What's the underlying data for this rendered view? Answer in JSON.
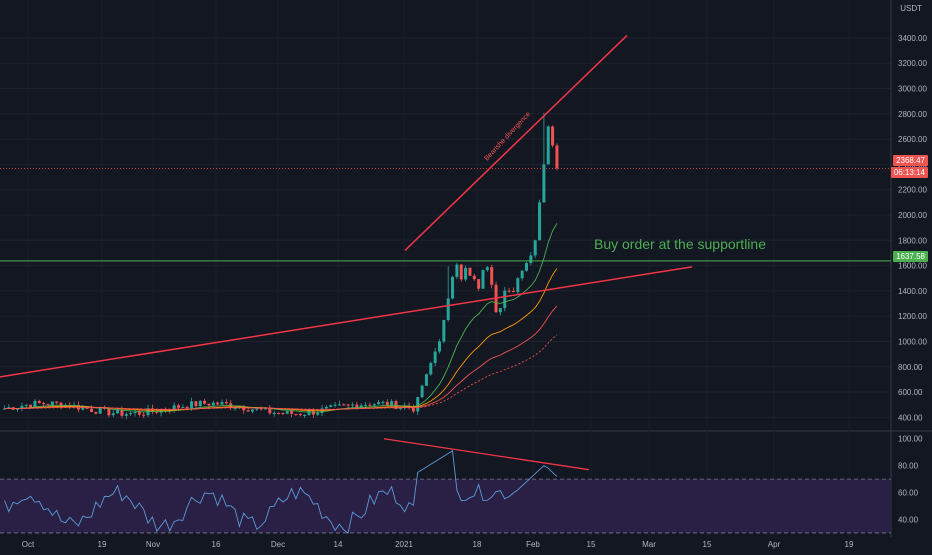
{
  "chart_data": {
    "type": "candlestick",
    "currency": "USDT",
    "price_axis_ticks": [
      "3400.00",
      "3200.00",
      "3000.00",
      "2800.00",
      "2600.00",
      "2400.00",
      "2200.00",
      "2000.00",
      "1800.00",
      "1600.00",
      "1400.00",
      "1200.00",
      "1000.00",
      "800.00",
      "600.00",
      "400.00"
    ],
    "price_ylim": [
      300,
      3700
    ],
    "rsi_axis_ticks": [
      "100.00",
      "80.00",
      "60.00",
      "40.00"
    ],
    "rsi_ylim": [
      27,
      105
    ],
    "rsi_band": [
      30,
      70
    ],
    "time_axis_labels": [
      "Oct",
      "19",
      "Nov",
      "16",
      "Dec",
      "14",
      "2021",
      "18",
      "Feb",
      "15",
      "Mar",
      "15",
      "Apr",
      "19"
    ],
    "last_price": "2368.47",
    "countdown": "06:13:14",
    "support_price": "1637.58",
    "support_value": 1637.58,
    "annotations": [
      "Bearishe divergence",
      "Buy order at the supportline"
    ],
    "colors": {
      "up": "#26a69a",
      "down": "#ef5350",
      "trendline": "#f23645",
      "support": "#4caf50",
      "ema_fast": "#4caf50",
      "ema_mid": "#ff9800",
      "ema_slow": "#ef5350",
      "rsi_line": "#5b9bd5",
      "rsi_band": "#2a1f45"
    },
    "price_series_summary": {
      "start_price": 460,
      "range_until_late_dec": [
        400,
        560
      ],
      "january_spike_high": 1960,
      "late_jan_low": 1050,
      "feb_high": 3100,
      "last_close": 2368.47
    }
  }
}
